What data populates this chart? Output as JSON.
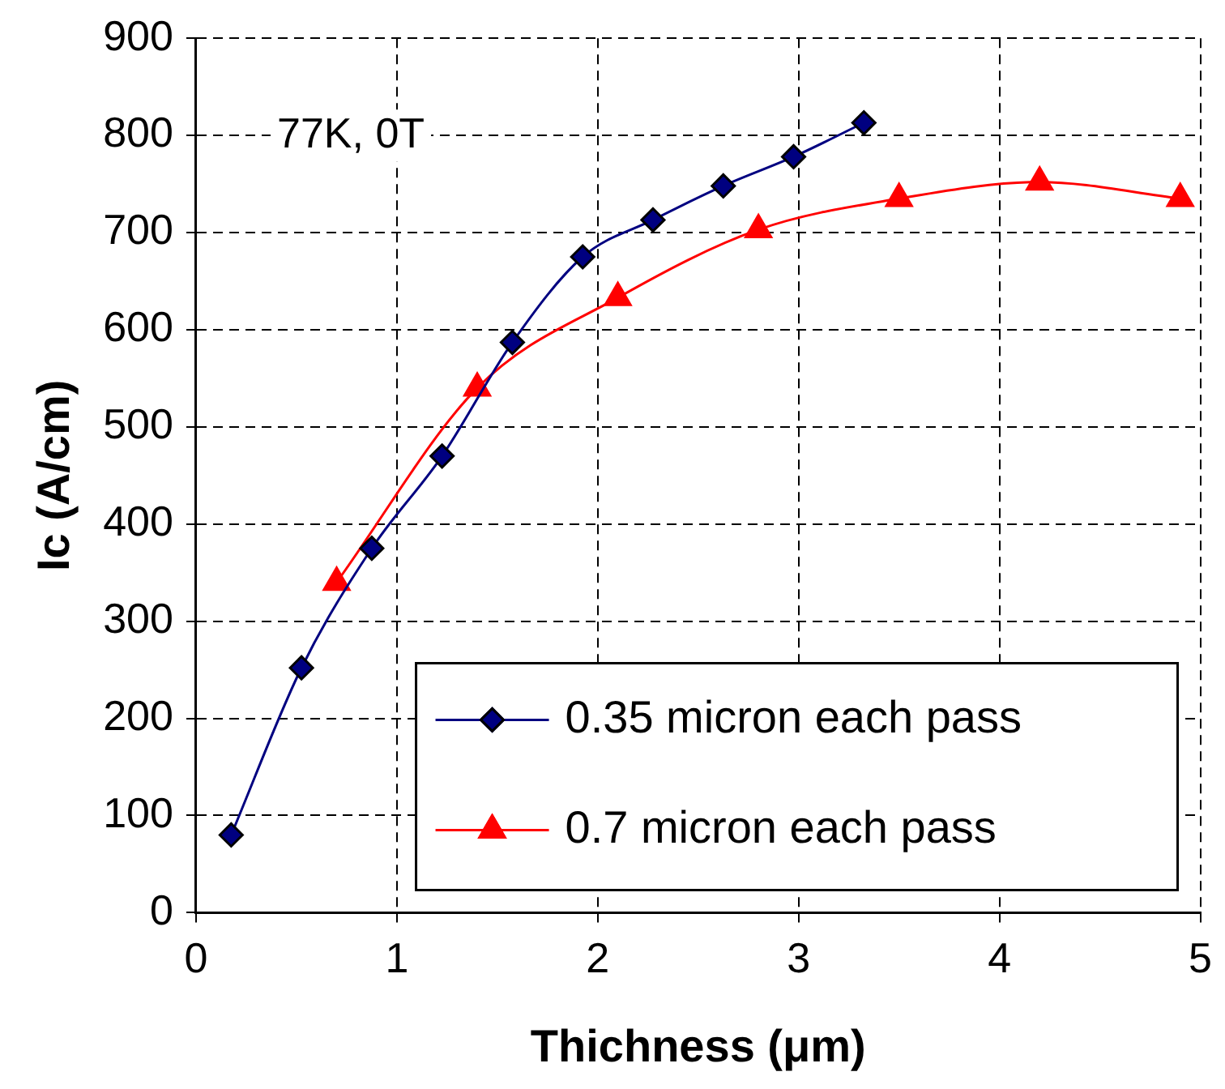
{
  "chart_data": {
    "type": "line",
    "xlabel": "Thichness (μm)",
    "ylabel": "Ic (A/cm)",
    "xlim": [
      0,
      5
    ],
    "xticks": [
      0,
      1,
      2,
      3,
      4,
      5
    ],
    "ylim": [
      0,
      900
    ],
    "yticks": [
      0,
      100,
      200,
      300,
      400,
      500,
      600,
      700,
      800,
      900
    ],
    "grid": true,
    "legend": "bottom right",
    "annotations": [
      "77K, 0T"
    ],
    "series": [
      {
        "name": "0.35 micron each pass",
        "color": "#000080",
        "marker": "diamond",
        "x": [
          0.175,
          0.525,
          0.875,
          1.225,
          1.575,
          1.925,
          2.275,
          2.625,
          2.975,
          3.325
        ],
        "values": [
          80,
          252,
          375,
          470,
          587,
          675,
          713,
          748,
          778,
          813
        ]
      },
      {
        "name": "0.7 micron each pass",
        "color": "#ff0000",
        "marker": "triangle",
        "x": [
          0.7,
          1.4,
          2.1,
          2.8,
          3.5,
          4.2,
          4.9
        ],
        "values": [
          340,
          540,
          633,
          703,
          735,
          752,
          735
        ]
      }
    ]
  }
}
